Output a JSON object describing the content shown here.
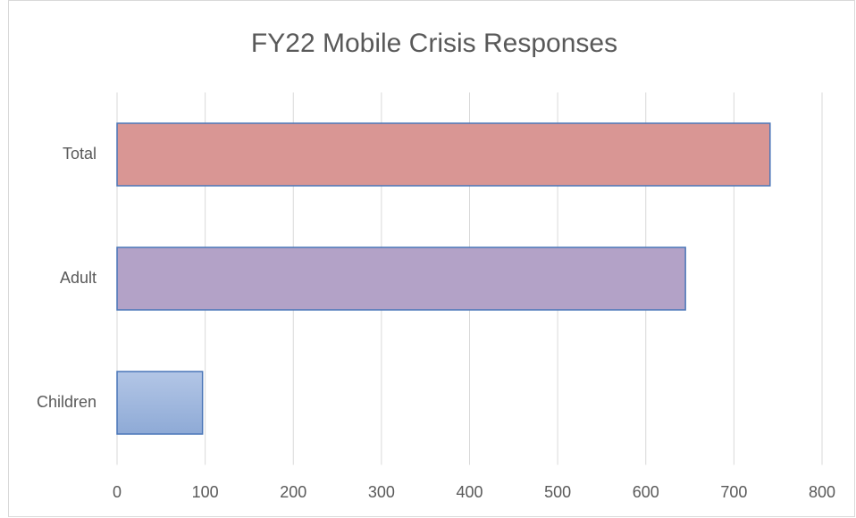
{
  "chart_data": {
    "type": "barh",
    "title": "FY22 Mobile Crisis Responses",
    "categories": [
      "Children",
      "Adult",
      "Total"
    ],
    "values": [
      97,
      645,
      741
    ],
    "colors": [
      "#a4bbde",
      "#b3a2c7",
      "#d99694"
    ],
    "xlim": [
      0,
      800
    ],
    "xticks": [
      0,
      100,
      200,
      300,
      400,
      500,
      600,
      700,
      800
    ],
    "grid": true
  }
}
